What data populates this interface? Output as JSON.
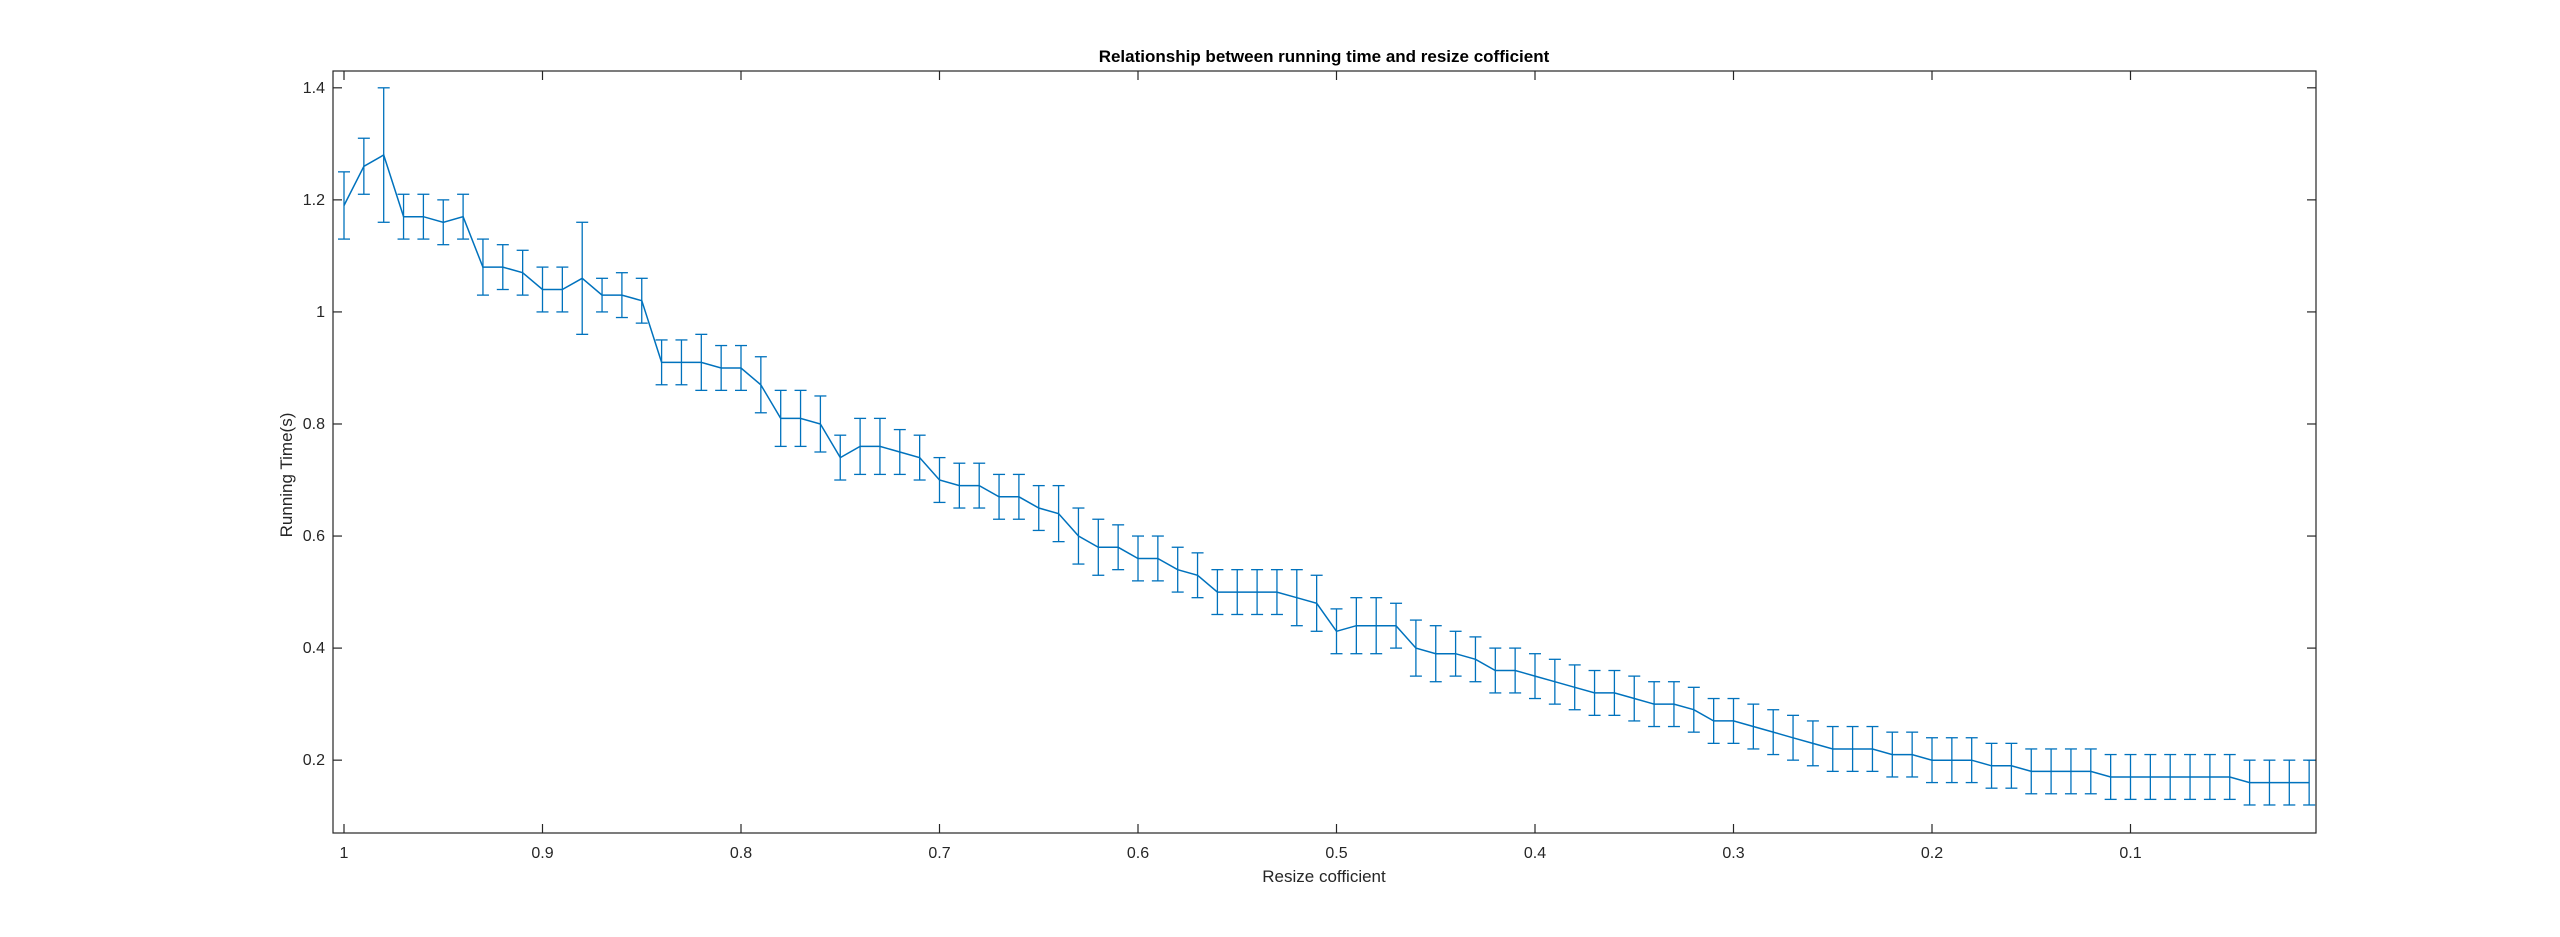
{
  "chart_data": {
    "type": "line",
    "title": "Relationship between running time and resize cofficient",
    "xlabel": "Resize cofficient",
    "ylabel": "Running Time(s)",
    "x_reversed": true,
    "xlim": [
      0,
      1
    ],
    "ylim": [
      0.07,
      1.43
    ],
    "xticks": [
      1,
      0.9,
      0.8,
      0.7,
      0.6,
      0.5,
      0.4,
      0.3,
      0.2,
      0.1
    ],
    "xtick_labels": [
      "1",
      "0.9",
      "0.8",
      "0.7",
      "0.6",
      "0.5",
      "0.4",
      "0.3",
      "0.2",
      "0.1"
    ],
    "yticks": [
      0.2,
      0.4,
      0.6,
      0.8,
      1.0,
      1.2,
      1.4
    ],
    "ytick_labels": [
      "0.2",
      "0.4",
      "0.6",
      "0.8",
      "1",
      "1.2",
      "1.4"
    ],
    "grid": false,
    "color": "#0072BD",
    "series": [
      {
        "x": [
          1.0,
          0.99,
          0.98,
          0.97,
          0.96,
          0.95,
          0.94,
          0.93,
          0.92,
          0.91,
          0.9,
          0.89,
          0.88,
          0.87,
          0.86,
          0.85,
          0.84,
          0.83,
          0.82,
          0.81,
          0.8,
          0.79,
          0.78,
          0.77,
          0.76,
          0.75,
          0.74,
          0.73,
          0.72,
          0.71,
          0.7,
          0.69,
          0.68,
          0.67,
          0.66,
          0.65,
          0.64,
          0.63,
          0.62,
          0.61,
          0.6,
          0.59,
          0.58,
          0.57,
          0.56,
          0.55,
          0.54,
          0.53,
          0.52,
          0.51,
          0.5,
          0.49,
          0.48,
          0.47,
          0.46,
          0.45,
          0.44,
          0.43,
          0.42,
          0.41,
          0.4,
          0.39,
          0.38,
          0.37,
          0.36,
          0.35,
          0.34,
          0.33,
          0.32,
          0.31,
          0.3,
          0.29,
          0.28,
          0.27,
          0.26,
          0.25,
          0.24,
          0.23,
          0.22,
          0.21,
          0.2,
          0.19,
          0.18,
          0.17,
          0.16,
          0.15,
          0.14,
          0.13,
          0.12,
          0.11,
          0.1,
          0.09,
          0.08,
          0.07,
          0.06,
          0.05,
          0.04,
          0.03,
          0.02,
          0.01
        ],
        "y": [
          1.19,
          1.26,
          1.28,
          1.17,
          1.17,
          1.16,
          1.17,
          1.08,
          1.08,
          1.07,
          1.04,
          1.04,
          1.06,
          1.03,
          1.03,
          1.02,
          0.91,
          0.91,
          0.91,
          0.9,
          0.9,
          0.87,
          0.81,
          0.81,
          0.8,
          0.74,
          0.76,
          0.76,
          0.75,
          0.74,
          0.7,
          0.69,
          0.69,
          0.67,
          0.67,
          0.65,
          0.64,
          0.6,
          0.58,
          0.58,
          0.56,
          0.56,
          0.54,
          0.53,
          0.5,
          0.5,
          0.5,
          0.5,
          0.49,
          0.48,
          0.43,
          0.44,
          0.44,
          0.44,
          0.4,
          0.39,
          0.39,
          0.38,
          0.36,
          0.36,
          0.35,
          0.34,
          0.33,
          0.32,
          0.32,
          0.31,
          0.3,
          0.3,
          0.29,
          0.27,
          0.27,
          0.26,
          0.25,
          0.24,
          0.23,
          0.22,
          0.22,
          0.22,
          0.21,
          0.21,
          0.2,
          0.2,
          0.2,
          0.19,
          0.19,
          0.18,
          0.18,
          0.18,
          0.18,
          0.17,
          0.17,
          0.17,
          0.17,
          0.17,
          0.17,
          0.17,
          0.16,
          0.16,
          0.16,
          0.16
        ],
        "err": [
          0.06,
          0.05,
          0.12,
          0.04,
          0.04,
          0.04,
          0.04,
          0.05,
          0.04,
          0.04,
          0.04,
          0.04,
          0.1,
          0.03,
          0.04,
          0.04,
          0.04,
          0.04,
          0.05,
          0.04,
          0.04,
          0.05,
          0.05,
          0.05,
          0.05,
          0.04,
          0.05,
          0.05,
          0.04,
          0.04,
          0.04,
          0.04,
          0.04,
          0.04,
          0.04,
          0.04,
          0.05,
          0.05,
          0.05,
          0.04,
          0.04,
          0.04,
          0.04,
          0.04,
          0.04,
          0.04,
          0.04,
          0.04,
          0.05,
          0.05,
          0.04,
          0.05,
          0.05,
          0.04,
          0.05,
          0.05,
          0.04,
          0.04,
          0.04,
          0.04,
          0.04,
          0.04,
          0.04,
          0.04,
          0.04,
          0.04,
          0.04,
          0.04,
          0.04,
          0.04,
          0.04,
          0.04,
          0.04,
          0.04,
          0.04,
          0.04,
          0.04,
          0.04,
          0.04,
          0.04,
          0.04,
          0.04,
          0.04,
          0.04,
          0.04,
          0.04,
          0.04,
          0.04,
          0.04,
          0.04,
          0.04,
          0.04,
          0.04,
          0.04,
          0.04,
          0.04,
          0.04,
          0.04,
          0.04,
          0.04
        ]
      }
    ]
  }
}
